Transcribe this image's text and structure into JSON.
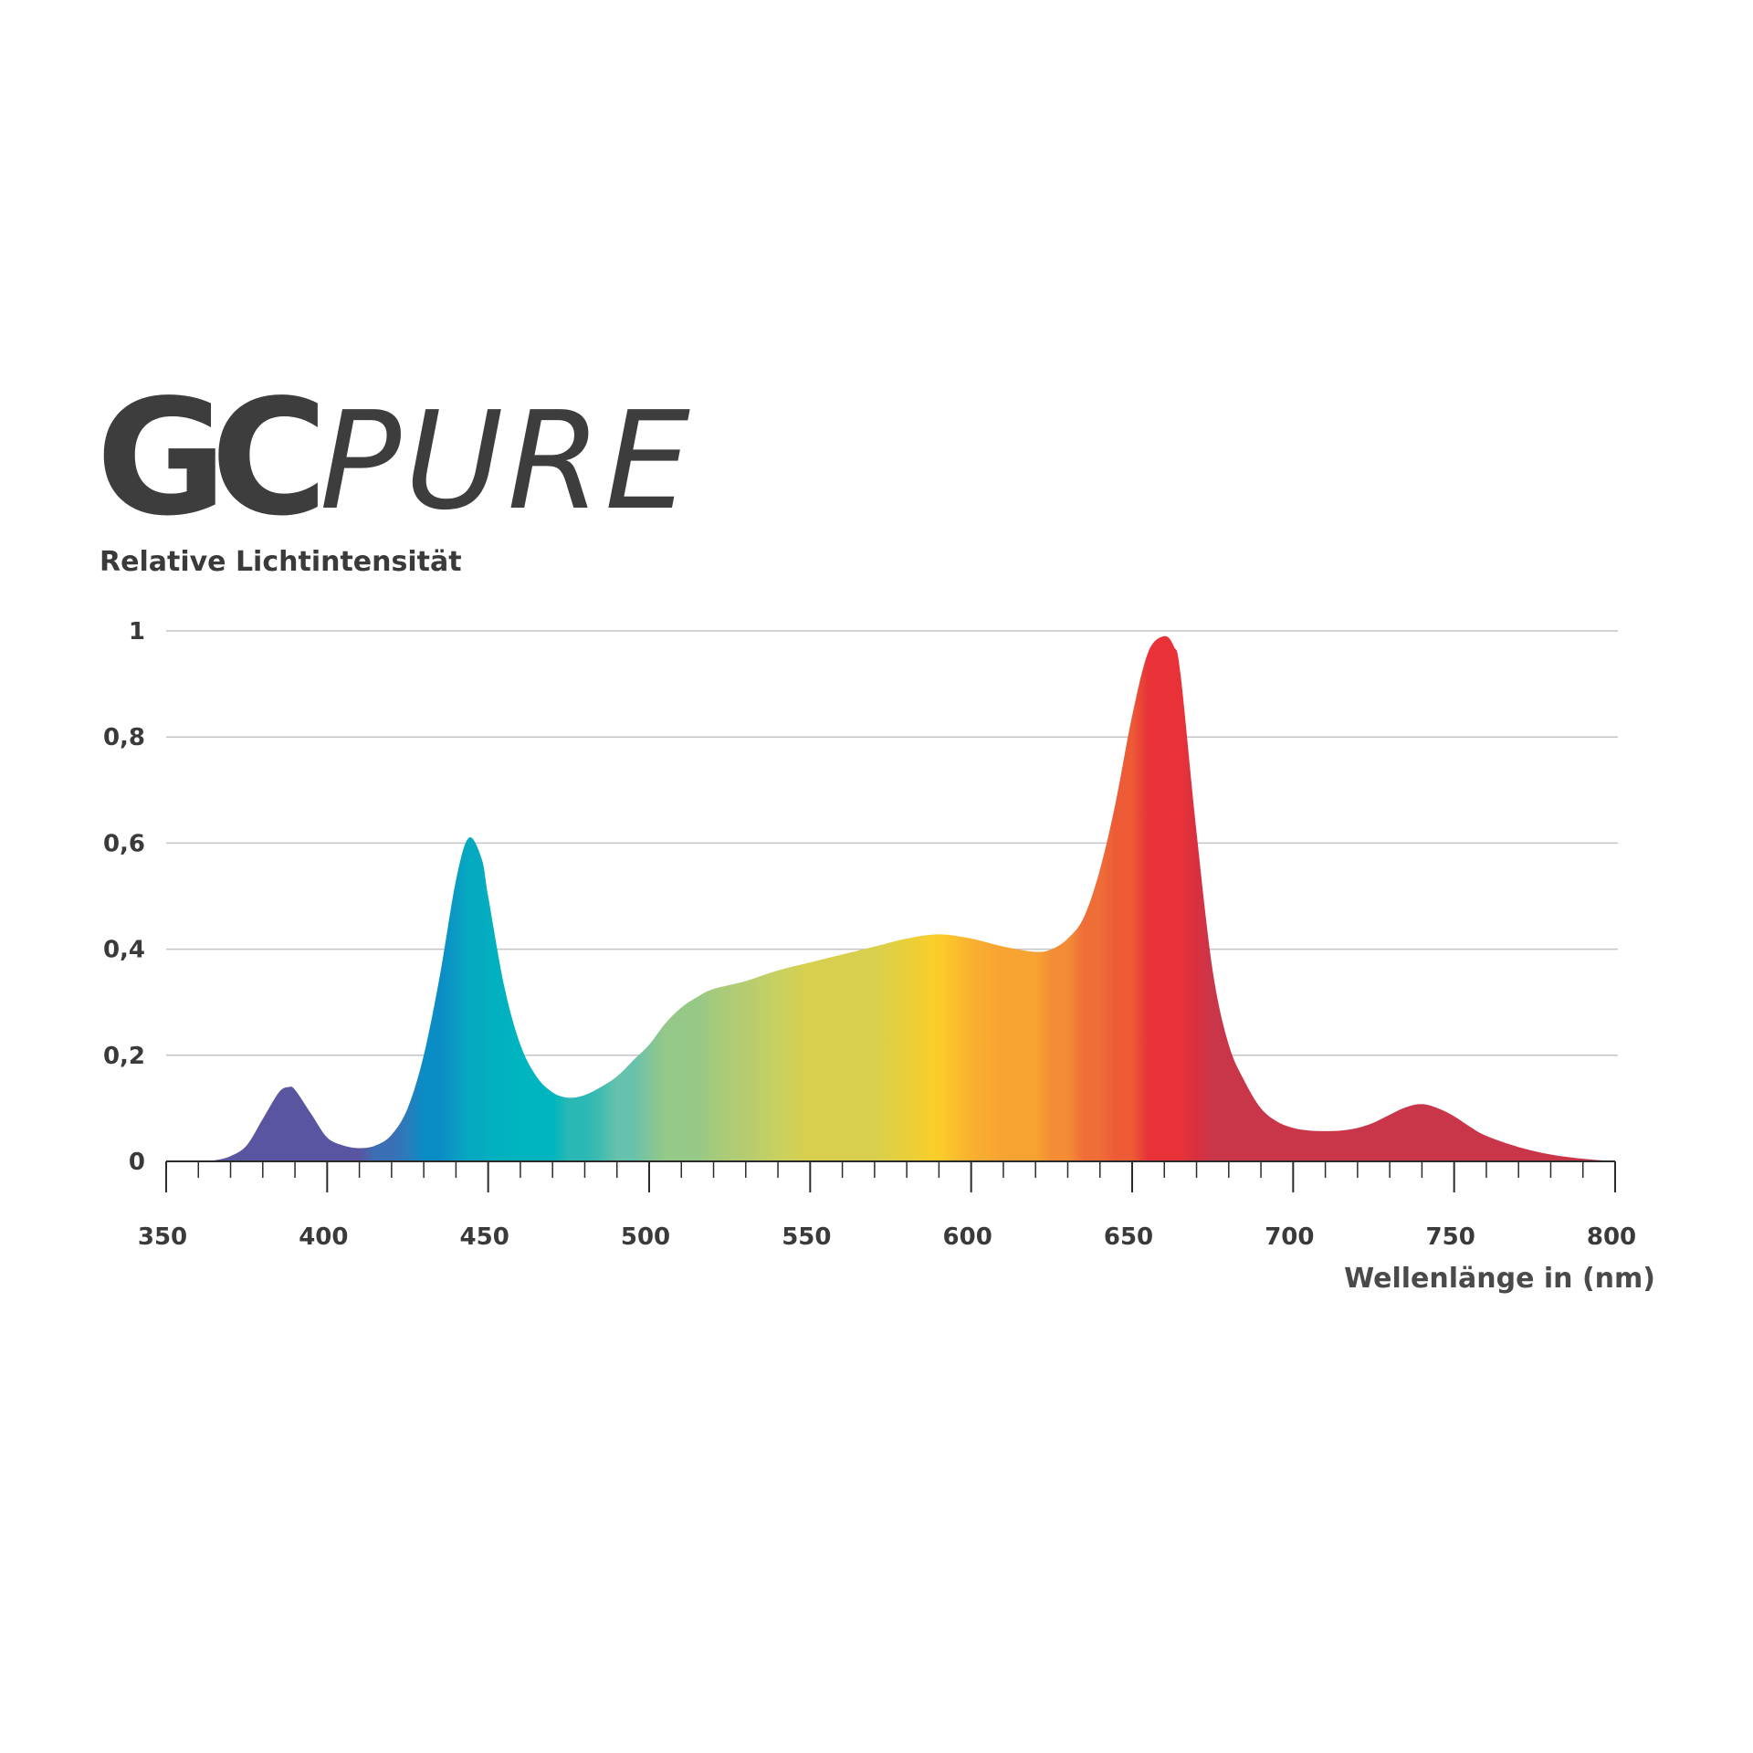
{
  "logo": {
    "mark": "GC",
    "text": "PURE"
  },
  "chart_data": {
    "type": "area",
    "y_label": "Relative Lichtintensität",
    "x_label": "Wellenlänge in (nm)",
    "x": [
      350,
      360,
      365,
      370,
      375,
      380,
      385,
      388,
      390,
      395,
      400,
      405,
      410,
      415,
      420,
      425,
      430,
      435,
      440,
      444,
      448,
      450,
      455,
      460,
      465,
      470,
      475,
      480,
      485,
      490,
      495,
      500,
      505,
      510,
      515,
      520,
      530,
      540,
      550,
      560,
      570,
      580,
      590,
      600,
      610,
      620,
      625,
      630,
      635,
      640,
      645,
      650,
      655,
      660,
      663,
      665,
      670,
      675,
      680,
      685,
      690,
      695,
      700,
      705,
      710,
      715,
      720,
      725,
      730,
      735,
      740,
      745,
      750,
      755,
      760,
      770,
      780,
      790,
      800
    ],
    "series": [
      {
        "values": [
          0,
          0,
          0.002,
          0.01,
          0.03,
          0.08,
          0.13,
          0.14,
          0.135,
          0.09,
          0.045,
          0.03,
          0.025,
          0.03,
          0.05,
          0.1,
          0.2,
          0.35,
          0.53,
          0.61,
          0.57,
          0.5,
          0.33,
          0.22,
          0.16,
          0.13,
          0.12,
          0.125,
          0.14,
          0.16,
          0.19,
          0.22,
          0.26,
          0.29,
          0.31,
          0.325,
          0.34,
          0.36,
          0.375,
          0.39,
          0.405,
          0.42,
          0.428,
          0.42,
          0.405,
          0.395,
          0.4,
          0.42,
          0.46,
          0.55,
          0.68,
          0.84,
          0.96,
          0.99,
          0.97,
          0.92,
          0.62,
          0.36,
          0.22,
          0.15,
          0.1,
          0.075,
          0.063,
          0.058,
          0.057,
          0.058,
          0.063,
          0.073,
          0.088,
          0.102,
          0.108,
          0.1,
          0.085,
          0.065,
          0.048,
          0.027,
          0.013,
          0.005,
          0
        ],
        "colors": [
          "#5a55a0",
          "#5a55a0",
          "#5a55a0",
          "#5a55a0",
          "#5a55a0",
          "#5a55a0",
          "#5a55a0",
          "#5a55a0",
          "#5a55a0",
          "#5a55a0",
          "#5a55a0",
          "#5a55a0",
          "#5a55a0",
          "#3a6fb5",
          "#3a6fb5",
          "#2a7cbc",
          "#0a8cc4",
          "#0a8cc4",
          "#0a9cc4",
          "#05aac0",
          "#05aac0",
          "#05aec0",
          "#00b2bf",
          "#00b5bf",
          "#00b5bf",
          "#00b5bf",
          "#2ab8b5",
          "#2ab8b5",
          "#40bcb0",
          "#66c2ac",
          "#66c2ac",
          "#80c59a",
          "#96c888",
          "#96c888",
          "#96c888",
          "#a5ca7c",
          "#b5cc70",
          "#c8d060",
          "#d9cf4e",
          "#d9cf4e",
          "#d9cf4e",
          "#e8cf3a",
          "#fccd28",
          "#f9b030",
          "#f7a332",
          "#f7a332",
          "#f38c35",
          "#f38c35",
          "#ef6e38",
          "#ef6e38",
          "#ec5a36",
          "#ec5a36",
          "#e83238",
          "#e83238",
          "#e83238",
          "#e83238",
          "#d83040",
          "#c9364a",
          "#c9364a",
          "#c9364a",
          "#c9364a",
          "#c9364a",
          "#c9364a",
          "#c9364a",
          "#c9364a",
          "#c9364a",
          "#c9364a",
          "#c9364a",
          "#c9364a",
          "#c9364a",
          "#c9364a",
          "#c9364a",
          "#c9364a",
          "#c9364a",
          "#c9364a",
          "#c9364a",
          "#c9364a",
          "#c9364a",
          "#c9364a"
        ]
      }
    ],
    "xlim": [
      350,
      800
    ],
    "ylim": [
      0,
      1
    ],
    "xticks": [
      350,
      400,
      450,
      500,
      550,
      600,
      650,
      700,
      750,
      800
    ],
    "xminorticks": [
      360,
      370,
      380,
      390,
      410,
      420,
      430,
      440,
      460,
      470,
      480,
      490,
      510,
      520,
      530,
      540,
      560,
      570,
      580,
      590,
      610,
      620,
      630,
      640,
      660,
      670,
      680,
      690,
      710,
      720,
      730,
      740,
      760,
      770,
      780,
      790
    ],
    "yticks": [
      0,
      {
        "value": 0.2,
        "label": "0,2"
      },
      {
        "value": 0.4,
        "label": "0,4"
      },
      {
        "value": 0.6,
        "label": "0,6"
      },
      {
        "value": 0.8,
        "label": "0,8"
      },
      1
    ],
    "grid": true,
    "grid_color": "#c4c4c4",
    "axis_color": "#2b2b2b"
  }
}
